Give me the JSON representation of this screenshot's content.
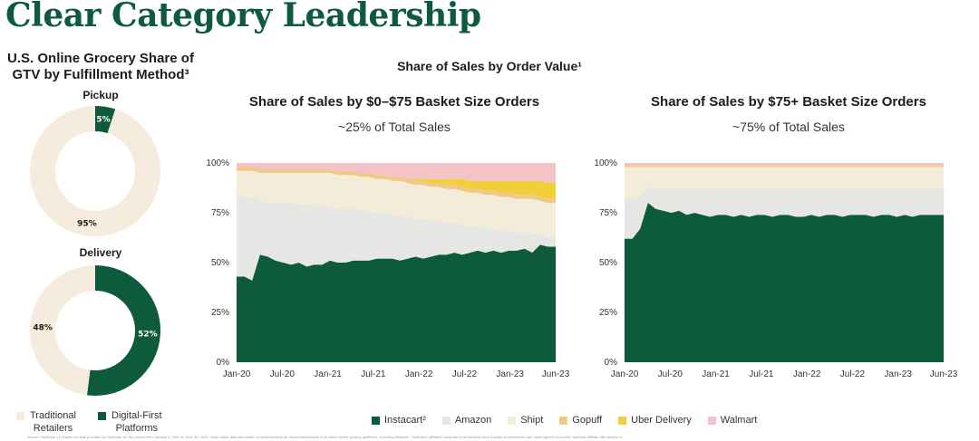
{
  "page_title": "Clear Category Leadership",
  "left_panel": {
    "heading_line1": "U.S. Online Grocery Share of",
    "heading_line2": "GTV by Fulfillment Method³",
    "pickup": {
      "label": "Pickup",
      "digital_first_pct": 5,
      "traditional_pct": 95,
      "digital_first_text": "5%",
      "traditional_text": "95%"
    },
    "delivery": {
      "label": "Delivery",
      "digital_first_pct": 52,
      "traditional_pct": 48,
      "digital_first_text": "52%",
      "traditional_text": "48%"
    },
    "legend": {
      "traditional_line1": "Traditional",
      "traditional_line2": "Retailers",
      "digital_line1": "Digital-First",
      "digital_line2": "Platforms"
    }
  },
  "right_panel": {
    "main_title": "Share of Sales by Order Value¹",
    "left_chart_title": "Share of Sales by $0–$75 Basket Size Orders",
    "left_chart_note": "~25% of Total Sales",
    "right_chart_title": "Share of Sales by $75+ Basket Size Orders",
    "right_chart_note": "~75% of Total Sales",
    "legend": [
      "Instacart²",
      "Amazon",
      "Shipt",
      "Gopuff",
      "Uber Delivery",
      "Walmart"
    ]
  },
  "colors": {
    "instacart": "#0d5a3c",
    "amazon": "#e6e6e4",
    "shipt": "#f3ecd9",
    "gopuff": "#f0c98a",
    "uber": "#f2cf3a",
    "walmart": "#f2c4c7",
    "traditional": "#f5ecdd",
    "digital_first": "#0d5a3c",
    "title_green": "#0d5a3c"
  },
  "footnote": "Source: YipitData. (1) Based on data provided by YipitData, for the period from January 1, 2020 to June 30, 2023. Order value data are based on email receipts for online transactions from select online grocery platforms, including Instacart. YipitData's affiliates comprise email receipts from a panel of consumers who have agreed to provide YipitData affiliate with access to",
  "chart_data": [
    {
      "type": "area",
      "title": "Share of Sales by $0–$75 Basket Size Orders",
      "subtitle": "~25% of Total Sales",
      "x_tick_labels": [
        "Jan-20",
        "Jul-20",
        "Jan-21",
        "Jul-21",
        "Jan-22",
        "Jul-22",
        "Jan-23",
        "Jun-23"
      ],
      "y_tick_labels": [
        "0%",
        "25%",
        "50%",
        "75%",
        "100%"
      ],
      "ylim": [
        0,
        100
      ],
      "stacked": true,
      "x": [
        0,
        1,
        2,
        3,
        4,
        5,
        6,
        7,
        8,
        9,
        10,
        11,
        12,
        13,
        14,
        15,
        16,
        17,
        18,
        19,
        20,
        21,
        22,
        23,
        24,
        25,
        26,
        27,
        28,
        29,
        30,
        31,
        32,
        33,
        34,
        35,
        36,
        37,
        38,
        39,
        40,
        41
      ],
      "series": [
        {
          "name": "Instacart²",
          "values": [
            43,
            43,
            41,
            54,
            53,
            51,
            50,
            49,
            50,
            48,
            49,
            49,
            51,
            50,
            50,
            51,
            51,
            51,
            52,
            52,
            52,
            51,
            52,
            53,
            52,
            53,
            54,
            54,
            55,
            54,
            55,
            56,
            55,
            56,
            55,
            56,
            56,
            57,
            55,
            59,
            58,
            58
          ]
        },
        {
          "name": "Amazon",
          "values": [
            41,
            40,
            42,
            27,
            27,
            29,
            30,
            31,
            29,
            31,
            30,
            29,
            27,
            27,
            27,
            26,
            25,
            25,
            23,
            23,
            22,
            23,
            21,
            19,
            20,
            18,
            17,
            16,
            15,
            15,
            13,
            12,
            12,
            11,
            11,
            10,
            9,
            8,
            10,
            5,
            5,
            5
          ]
        },
        {
          "name": "Shipt",
          "values": [
            12,
            13,
            13,
            14,
            15,
            15,
            15,
            15,
            16,
            16,
            16,
            17,
            17,
            17,
            17,
            17,
            17,
            17,
            17,
            17,
            17,
            17,
            17,
            17,
            17,
            17,
            17,
            17,
            17,
            17,
            17,
            17,
            17,
            17,
            17,
            17,
            17,
            17,
            17,
            17,
            17,
            17
          ]
        },
        {
          "name": "Gopuff",
          "values": [
            2,
            2,
            2,
            2,
            2,
            2,
            2,
            2,
            2,
            2,
            2,
            2,
            2,
            2,
            2,
            2,
            2,
            2,
            2,
            2,
            2,
            2,
            2,
            2,
            2,
            2,
            2,
            2,
            2,
            2,
            2,
            2,
            2,
            2,
            2,
            2,
            2,
            2,
            2,
            2,
            2,
            2
          ]
        },
        {
          "name": "Uber Delivery",
          "values": [
            0,
            0,
            0,
            0,
            0,
            0,
            0,
            0,
            0,
            0,
            0,
            0,
            0,
            0,
            0,
            0,
            0,
            0,
            0,
            0,
            0,
            0,
            0,
            1,
            1,
            2,
            2,
            3,
            3,
            4,
            4,
            4,
            5,
            5,
            6,
            6,
            7,
            7,
            7,
            8,
            8,
            8
          ]
        },
        {
          "name": "Walmart",
          "values": [
            2,
            2,
            2,
            3,
            3,
            3,
            3,
            3,
            3,
            3,
            3,
            3,
            3,
            4,
            4,
            4,
            5,
            5,
            6,
            6,
            7,
            7,
            8,
            8,
            8,
            8,
            8,
            8,
            8,
            8,
            9,
            9,
            9,
            9,
            9,
            9,
            9,
            9,
            9,
            9,
            10,
            10
          ]
        }
      ]
    },
    {
      "type": "area",
      "title": "Share of Sales by $75+ Basket Size Orders",
      "subtitle": "~75% of Total Sales",
      "x_tick_labels": [
        "Jan-20",
        "Jul-20",
        "Jan-21",
        "Jul-21",
        "Jan-22",
        "Jul-22",
        "Jan-23",
        "Jun-23"
      ],
      "y_tick_labels": [
        "0%",
        "25%",
        "50%",
        "75%",
        "100%"
      ],
      "ylim": [
        0,
        100
      ],
      "stacked": true,
      "x": [
        0,
        1,
        2,
        3,
        4,
        5,
        6,
        7,
        8,
        9,
        10,
        11,
        12,
        13,
        14,
        15,
        16,
        17,
        18,
        19,
        20,
        21,
        22,
        23,
        24,
        25,
        26,
        27,
        28,
        29,
        30,
        31,
        32,
        33,
        34,
        35,
        36,
        37,
        38,
        39,
        40,
        41
      ],
      "series": [
        {
          "name": "Instacart²",
          "values": [
            62,
            62,
            67,
            80,
            77,
            76,
            75,
            76,
            74,
            75,
            74,
            73,
            74,
            74,
            73,
            74,
            73,
            74,
            74,
            73,
            74,
            74,
            73,
            73,
            74,
            73,
            74,
            74,
            73,
            74,
            74,
            74,
            73,
            74,
            74,
            73,
            74,
            73,
            74,
            74,
            74,
            74
          ]
        },
        {
          "name": "Amazon",
          "values": [
            20,
            20,
            16,
            8,
            10,
            11,
            12,
            11,
            13,
            12,
            13,
            14,
            13,
            13,
            14,
            13,
            14,
            13,
            13,
            14,
            13,
            13,
            14,
            14,
            13,
            14,
            13,
            13,
            14,
            13,
            13,
            13,
            14,
            13,
            13,
            14,
            13,
            14,
            13,
            13,
            13,
            13
          ]
        },
        {
          "name": "Shipt",
          "values": [
            16,
            16,
            15,
            10,
            11,
            11,
            11,
            11,
            11,
            11,
            11,
            11,
            11,
            11,
            11,
            11,
            11,
            11,
            11,
            11,
            11,
            11,
            11,
            11,
            11,
            11,
            11,
            11,
            11,
            11,
            11,
            11,
            11,
            11,
            11,
            11,
            11,
            11,
            11,
            11,
            11,
            11
          ]
        },
        {
          "name": "Gopuff",
          "values": [
            1,
            1,
            1,
            1,
            1,
            1,
            1,
            1,
            1,
            1,
            1,
            1,
            1,
            1,
            1,
            1,
            1,
            1,
            1,
            1,
            1,
            1,
            1,
            1,
            1,
            1,
            1,
            1,
            1,
            1,
            1,
            1,
            1,
            1,
            1,
            1,
            1,
            1,
            1,
            1,
            1,
            1
          ]
        },
        {
          "name": "Uber Delivery",
          "values": [
            0,
            0,
            0,
            0,
            0,
            0,
            0,
            0,
            0,
            0,
            0,
            0,
            0,
            0,
            0,
            0,
            0,
            0,
            0,
            0,
            0,
            0,
            0,
            0,
            0,
            0,
            0,
            0,
            0,
            0,
            0,
            0,
            0,
            0,
            0,
            0,
            0,
            0,
            0,
            0,
            0,
            0
          ]
        },
        {
          "name": "Walmart",
          "values": [
            1,
            1,
            1,
            1,
            1,
            1,
            1,
            1,
            1,
            1,
            1,
            1,
            1,
            1,
            1,
            1,
            1,
            1,
            1,
            1,
            1,
            1,
            1,
            1,
            1,
            1,
            1,
            1,
            1,
            1,
            1,
            1,
            1,
            1,
            1,
            1,
            1,
            1,
            1,
            1,
            1,
            1
          ]
        }
      ]
    },
    {
      "type": "pie",
      "title": "Pickup",
      "categories": [
        "Digital-First Platforms",
        "Traditional Retailers"
      ],
      "values": [
        5,
        95
      ]
    },
    {
      "type": "pie",
      "title": "Delivery",
      "categories": [
        "Digital-First Platforms",
        "Traditional Retailers"
      ],
      "values": [
        52,
        48
      ]
    }
  ]
}
